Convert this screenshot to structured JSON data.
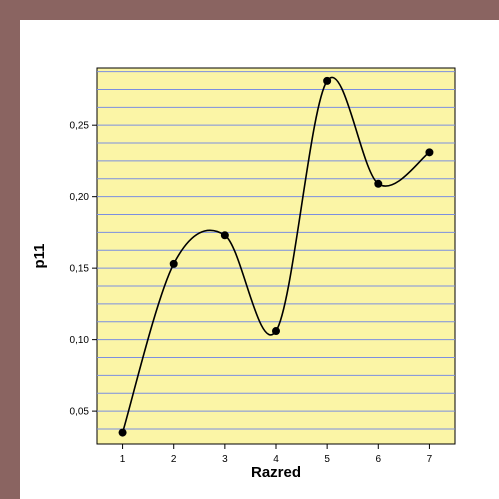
{
  "colors": {
    "page_background": "#8a6461",
    "card_background": "#ffffff",
    "plot_background": "#fbf5a6",
    "grid_line": "#7b8fe0",
    "curve": "#000000",
    "marker": "#000000"
  },
  "chart_data": {
    "type": "line",
    "title": "",
    "xlabel": "Razred",
    "ylabel": "p11",
    "x": [
      1,
      2,
      3,
      4,
      5,
      6,
      7
    ],
    "x_tick_labels": [
      "1",
      "2",
      "3",
      "4",
      "5",
      "6",
      "7"
    ],
    "xlim": [
      0.5,
      7.5
    ],
    "y_ticks": [
      0.05,
      0.1,
      0.15,
      0.2,
      0.25
    ],
    "y_tick_labels": [
      "0,05",
      "0,10",
      "0,15",
      "0,20",
      "0,25"
    ],
    "ylim": [
      0.027,
      0.29
    ],
    "grid": "horizontal",
    "smooth": true,
    "legend": "none",
    "series": [
      {
        "values": [
          0.035,
          0.153,
          0.173,
          0.106,
          0.281,
          0.209,
          0.231
        ]
      }
    ]
  }
}
